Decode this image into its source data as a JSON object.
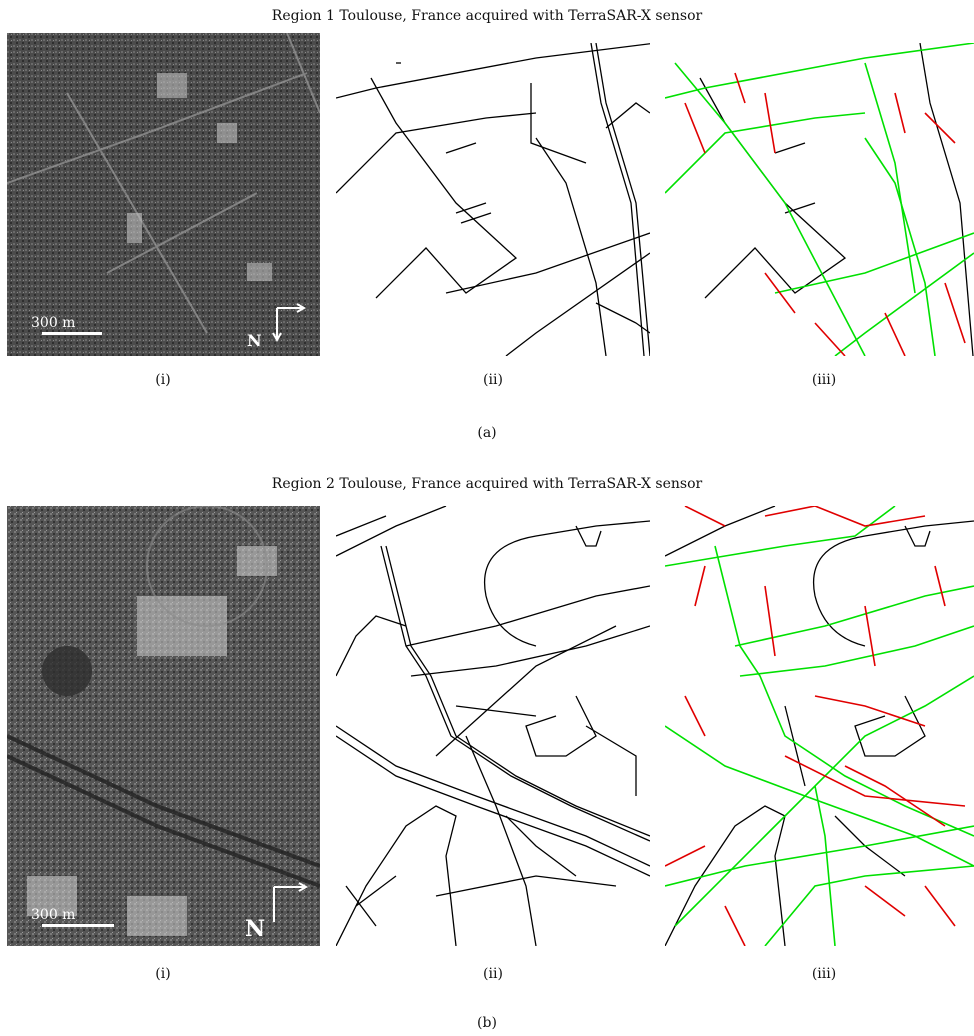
{
  "figure": {
    "row_a": {
      "title": "Region 1 Toulouse, France acquired with TerraSAR-X sensor",
      "captions": [
        "(i)",
        "(ii)",
        "(iii)"
      ],
      "label": "(a)",
      "scale_bar": "300 m",
      "north": "N"
    },
    "row_b": {
      "title": "Region 2 Toulouse, France acquired with TerraSAR-X sensor",
      "captions": [
        "(i)",
        "(ii)",
        "(iii)"
      ],
      "label": "(b)",
      "scale_bar": "300 m",
      "north": "N"
    },
    "colors": {
      "reference": "#000000",
      "extracted_true": "#00e000",
      "extracted_false": "#e00000",
      "sar_dark": "#3a3a3a"
    }
  }
}
